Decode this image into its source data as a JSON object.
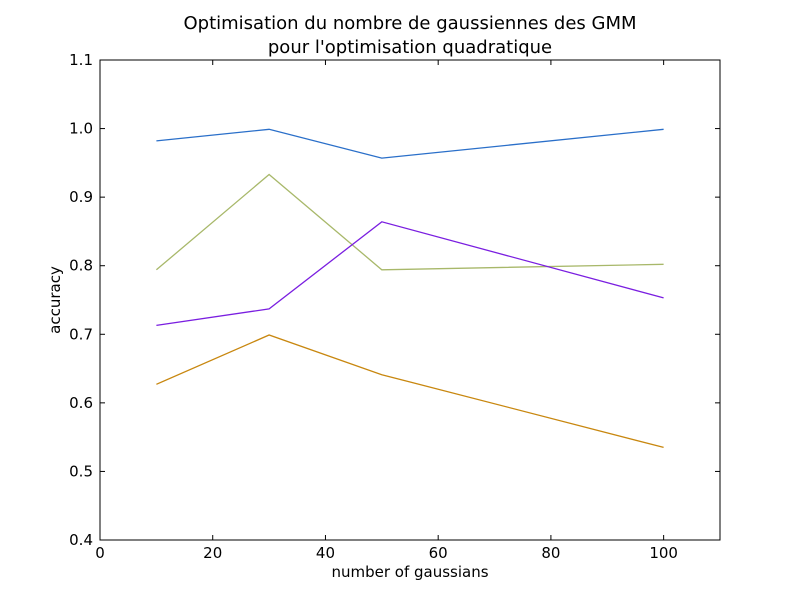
{
  "chart_data": {
    "type": "line",
    "title": "Optimisation du nombre de gaussiennes des GMM",
    "subtitle": "pour l'optimisation quadratique",
    "xlabel": "number of gaussians",
    "ylabel": "accuracy",
    "xlim": [
      0,
      110
    ],
    "ylim": [
      0.4,
      1.1
    ],
    "xticks": [
      "0",
      "20",
      "40",
      "60",
      "80",
      "100"
    ],
    "yticks": [
      "0.4",
      "0.5",
      "0.6",
      "0.7",
      "0.8",
      "0.9",
      "1.0",
      "1.1"
    ],
    "grid": false,
    "x": [
      10,
      30,
      50,
      100
    ],
    "series": [
      {
        "color": "#2a6fc9",
        "values": [
          0.982,
          0.999,
          0.957,
          0.999
        ]
      },
      {
        "color": "#a8b86a",
        "values": [
          0.794,
          0.933,
          0.794,
          0.802
        ]
      },
      {
        "color": "#7a1ee0",
        "values": [
          0.713,
          0.737,
          0.864,
          0.753
        ]
      },
      {
        "color": "#c8870f",
        "values": [
          0.627,
          0.699,
          0.641,
          0.535
        ]
      }
    ]
  }
}
